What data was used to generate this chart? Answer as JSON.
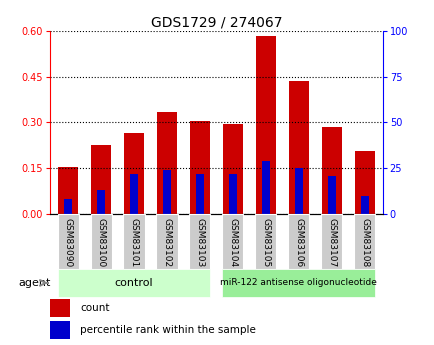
{
  "title": "GDS1729 / 274067",
  "samples": [
    "GSM83090",
    "GSM83100",
    "GSM83101",
    "GSM83102",
    "GSM83103",
    "GSM83104",
    "GSM83105",
    "GSM83106",
    "GSM83107",
    "GSM83108"
  ],
  "count_values": [
    0.155,
    0.225,
    0.265,
    0.335,
    0.305,
    0.295,
    0.585,
    0.435,
    0.285,
    0.205
  ],
  "percentile_values": [
    8,
    13,
    22,
    24,
    22,
    22,
    29,
    25,
    21,
    10
  ],
  "ylim_left": [
    0,
    0.6
  ],
  "ylim_right": [
    0,
    100
  ],
  "yticks_left": [
    0,
    0.15,
    0.3,
    0.45,
    0.6
  ],
  "yticks_right": [
    0,
    25,
    50,
    75,
    100
  ],
  "bar_color_red": "#CC0000",
  "bar_color_blue": "#0000CC",
  "bar_width": 0.6,
  "blue_bar_width": 0.25,
  "group1_label": "control",
  "group2_label": "miR-122 antisense oligonucleotide",
  "group1_indices": [
    0,
    4
  ],
  "group2_indices": [
    5,
    9
  ],
  "group1_color": "#CCFFCC",
  "group2_color": "#99EE99",
  "xlabel_bg_color": "#CCCCCC",
  "agent_label": "agent",
  "legend_count": "count",
  "legend_percentile": "percentile rank within the sample",
  "title_fontsize": 10,
  "tick_fontsize": 7,
  "legend_fontsize": 7.5
}
